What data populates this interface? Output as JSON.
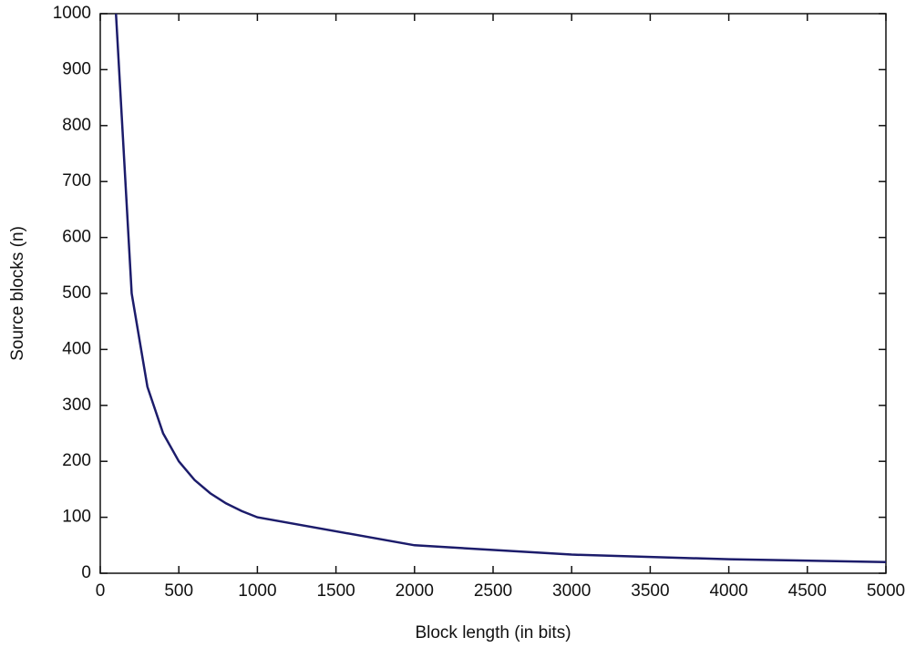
{
  "chart_data": {
    "type": "line",
    "xlabel": "Block length (in bits)",
    "ylabel": "Source blocks (n)",
    "x": [
      100,
      200,
      300,
      400,
      500,
      600,
      700,
      800,
      900,
      1000,
      2000,
      3000,
      4000,
      5000
    ],
    "series": [
      {
        "color": "#1c1c6b",
        "values": [
          1000,
          500,
          333.3,
          250,
          200,
          166.7,
          142.9,
          125,
          111.1,
          100,
          50,
          33.3,
          25,
          20
        ]
      }
    ],
    "xlim": [
      0,
      5000
    ],
    "xticks": [
      0,
      500,
      1000,
      1500,
      2000,
      2500,
      3000,
      3500,
      4000,
      4500,
      5000
    ],
    "ylim": [
      0,
      1000
    ],
    "yticks": [
      0,
      100,
      200,
      300,
      400,
      500,
      600,
      700,
      800,
      900,
      1000
    ],
    "grid": false
  }
}
